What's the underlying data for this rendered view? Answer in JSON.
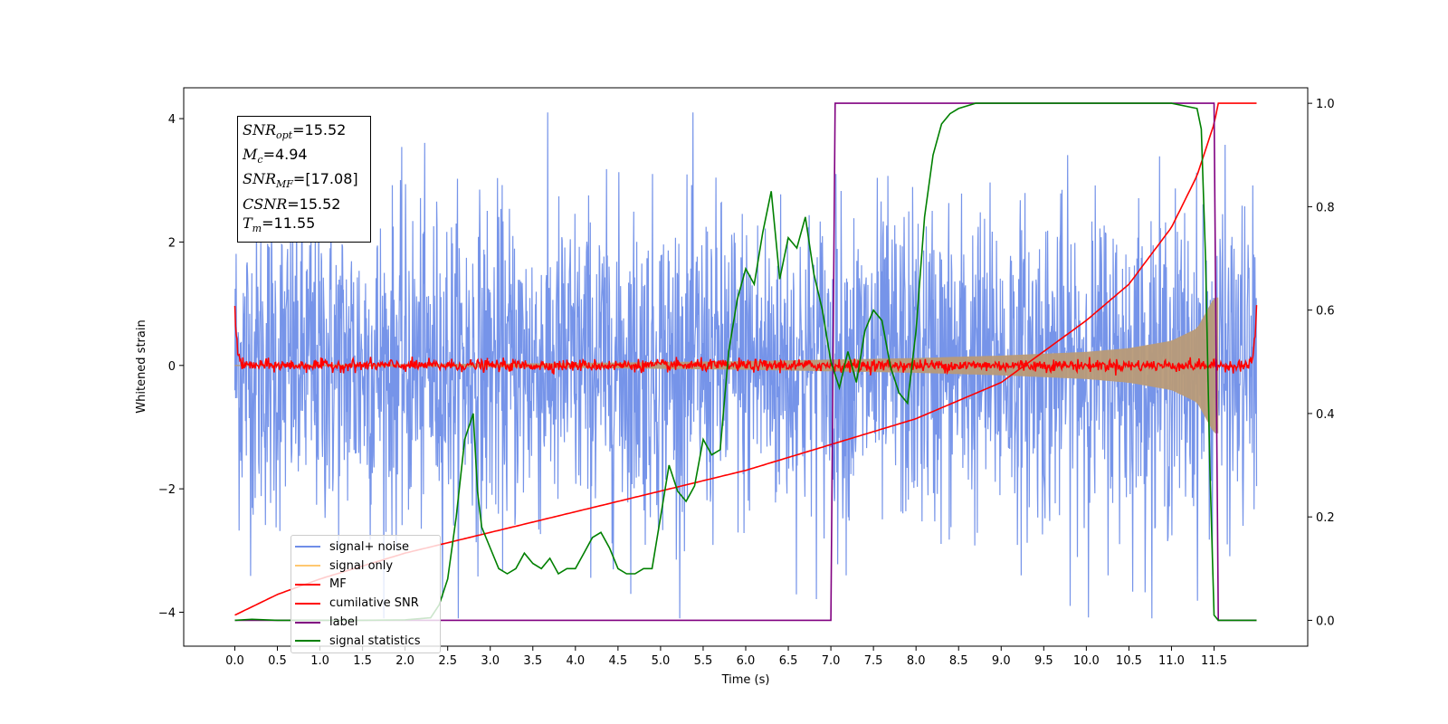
{
  "chart_data": {
    "type": "line",
    "xlabel": "Time (s)",
    "ylabel_left": "Whitened strain",
    "xlim": [
      -0.6,
      12.6
    ],
    "ylim_left": [
      -4.55,
      4.5
    ],
    "ylim_right": [
      -0.05,
      1.03
    ],
    "x_ticks": [
      0.0,
      0.5,
      1.0,
      1.5,
      2.0,
      2.5,
      3.0,
      3.5,
      4.0,
      4.5,
      5.0,
      5.5,
      6.0,
      6.5,
      7.0,
      7.5,
      8.0,
      8.5,
      9.0,
      9.5,
      10.0,
      10.5,
      11.0,
      11.5
    ],
    "x_tick_labels": [
      "0.0",
      "0.5",
      "1.0",
      "1.5",
      "2.0",
      "2.5",
      "3.0",
      "3.5",
      "4.0",
      "4.5",
      "5.0",
      "5.5",
      "6.0",
      "6.5",
      "7.0",
      "7.5",
      "8.0",
      "8.5",
      "9.0",
      "9.5",
      "10.0",
      "10.5",
      "11.0",
      "11.5"
    ],
    "y_left_ticks": [
      -4,
      -2,
      0,
      2,
      4
    ],
    "y_left_tick_labels": [
      "−4",
      "−2",
      "0",
      "2",
      "4"
    ],
    "y_right_ticks": [
      0.0,
      0.2,
      0.4,
      0.6,
      0.8,
      1.0
    ],
    "y_right_tick_labels": [
      "0.0",
      "0.2",
      "0.4",
      "0.6",
      "0.8",
      "1.0"
    ],
    "grid": false,
    "legend_position": "lower-left",
    "series": [
      {
        "name": "signal+ noise",
        "axis": "left",
        "color": "#6f8ee8",
        "x_range": [
          0.0,
          12.0
        ],
        "approx_std": 1.3,
        "approx_range": [
          -4.1,
          4.1
        ]
      },
      {
        "name": "signal only",
        "axis": "left",
        "color": "#ffc870",
        "x_range": [
          0.0,
          11.55
        ],
        "envelope_x": [
          0.0,
          2.0,
          4.0,
          6.0,
          8.0,
          9.0,
          10.0,
          10.5,
          11.0,
          11.3,
          11.5
        ],
        "envelope_amp": [
          0.01,
          0.02,
          0.04,
          0.07,
          0.12,
          0.16,
          0.22,
          0.28,
          0.4,
          0.6,
          1.1
        ]
      },
      {
        "name": "MF",
        "axis": "left",
        "color": "#ff0000",
        "x_range": [
          0.0,
          12.0
        ],
        "approx_center": 0.0,
        "approx_spread": 0.08,
        "edge_peak": 1.0
      },
      {
        "name": "cumilative SNR",
        "axis": "right",
        "color": "#ff0000",
        "x": [
          0.0,
          0.5,
          1.0,
          2.0,
          3.0,
          4.0,
          5.0,
          6.0,
          7.0,
          8.0,
          9.0,
          10.0,
          10.5,
          11.0,
          11.3,
          11.5,
          11.55,
          12.0
        ],
        "values": [
          0.01,
          0.05,
          0.08,
          0.13,
          0.17,
          0.21,
          0.25,
          0.29,
          0.34,
          0.39,
          0.46,
          0.58,
          0.65,
          0.76,
          0.86,
          0.96,
          1.0,
          1.0
        ]
      },
      {
        "name": "label",
        "axis": "right",
        "color": "#800080",
        "x": [
          0.0,
          7.0,
          7.05,
          11.5,
          11.55,
          12.0
        ],
        "values": [
          0.0,
          0.0,
          1.0,
          1.0,
          0.0,
          0.0
        ]
      },
      {
        "name": "signal statistics",
        "axis": "right",
        "color": "#008000",
        "x": [
          0.0,
          0.2,
          0.5,
          1.0,
          1.5,
          2.0,
          2.3,
          2.4,
          2.5,
          2.6,
          2.7,
          2.8,
          2.85,
          2.9,
          3.0,
          3.1,
          3.2,
          3.3,
          3.4,
          3.5,
          3.6,
          3.7,
          3.8,
          3.9,
          4.0,
          4.1,
          4.2,
          4.3,
          4.4,
          4.5,
          4.6,
          4.7,
          4.8,
          4.9,
          5.0,
          5.1,
          5.2,
          5.3,
          5.4,
          5.5,
          5.6,
          5.7,
          5.8,
          5.9,
          6.0,
          6.1,
          6.2,
          6.3,
          6.4,
          6.5,
          6.6,
          6.7,
          6.8,
          6.9,
          7.0,
          7.1,
          7.2,
          7.3,
          7.4,
          7.5,
          7.6,
          7.7,
          7.8,
          7.9,
          8.0,
          8.1,
          8.2,
          8.3,
          8.4,
          8.5,
          8.6,
          8.7,
          8.8,
          9.0,
          9.5,
          10.0,
          10.5,
          11.0,
          11.3,
          11.35,
          11.4,
          11.45,
          11.5,
          11.55,
          12.0
        ],
        "values": [
          0.0,
          0.002,
          0.0,
          0.0,
          0.0,
          0.001,
          0.005,
          0.03,
          0.08,
          0.2,
          0.35,
          0.4,
          0.25,
          0.18,
          0.14,
          0.1,
          0.09,
          0.1,
          0.13,
          0.11,
          0.1,
          0.12,
          0.09,
          0.1,
          0.1,
          0.13,
          0.16,
          0.17,
          0.14,
          0.1,
          0.09,
          0.09,
          0.1,
          0.1,
          0.2,
          0.3,
          0.25,
          0.23,
          0.26,
          0.35,
          0.32,
          0.33,
          0.52,
          0.62,
          0.68,
          0.65,
          0.75,
          0.83,
          0.66,
          0.74,
          0.72,
          0.78,
          0.67,
          0.6,
          0.5,
          0.45,
          0.52,
          0.46,
          0.56,
          0.6,
          0.58,
          0.49,
          0.44,
          0.42,
          0.56,
          0.78,
          0.9,
          0.96,
          0.98,
          0.99,
          0.995,
          1.0,
          1.0,
          1.0,
          1.0,
          1.0,
          1.0,
          1.0,
          0.99,
          0.95,
          0.7,
          0.3,
          0.01,
          0.0,
          0.0
        ]
      }
    ],
    "info_box": {
      "snr_opt": "=15.52",
      "mc": "=4.94",
      "snr_mf": "=[17.08]",
      "csnr": "=15.52",
      "tm": "=11.55"
    }
  }
}
